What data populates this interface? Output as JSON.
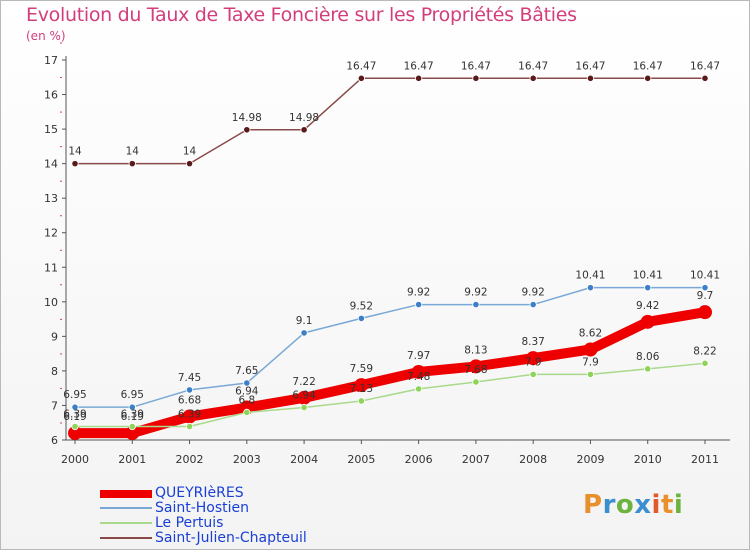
{
  "header": {
    "title": "Evolution du Taux de Taxe Foncière sur les Propriétés Bâties",
    "unit": "(en %)"
  },
  "logo": {
    "text": "Proxiti",
    "letters": [
      "P",
      "r",
      "o",
      "x",
      "i",
      "t",
      "i"
    ]
  },
  "chart_data": {
    "type": "line",
    "title": "Evolution du Taux de Taxe Foncière sur les Propriétés Bâties",
    "ylabel": "(en %)",
    "xlabel": "",
    "x": [
      "2000",
      "2001",
      "2002",
      "2003",
      "2004",
      "2005",
      "2006",
      "2007",
      "2008",
      "2009",
      "2010",
      "2011"
    ],
    "ylim": [
      6,
      17
    ],
    "yticks": [
      "6",
      "7",
      "8",
      "9",
      "10",
      "11",
      "12",
      "13",
      "14",
      "15",
      "16",
      "17"
    ],
    "grid": false,
    "legend_position": "bottom-left",
    "series": [
      {
        "name": "QUEYRIèRES",
        "color": "#ee0000",
        "marker_color": "#ee0000",
        "emphasis": "thick",
        "values": [
          6.2,
          6.2,
          6.68,
          6.94,
          7.22,
          7.59,
          7.97,
          8.13,
          8.37,
          8.62,
          9.42,
          9.7
        ],
        "labels": [
          "6.19",
          "6.19",
          "6.68",
          "6.94",
          "7.22",
          "7.59",
          "7.97",
          "8.13",
          "8.37",
          "8.62",
          "9.42",
          "9.7"
        ]
      },
      {
        "name": "Saint-Hostien",
        "color": "#7aa8d6",
        "marker_color": "#3c7fc6",
        "emphasis": "normal",
        "values": [
          6.95,
          6.95,
          7.45,
          7.65,
          9.1,
          9.52,
          9.92,
          9.92,
          9.92,
          10.41,
          10.41,
          10.41
        ],
        "labels": [
          "6.95",
          "6.95",
          "7.45",
          "7.65",
          "9.1",
          "9.52",
          "9.92",
          "9.92",
          "9.92",
          "10.41",
          "10.41",
          "10.41"
        ]
      },
      {
        "name": "Le Pertuis",
        "color": "#a9d98a",
        "marker_color": "#8fd35a",
        "emphasis": "normal",
        "values": [
          6.39,
          6.39,
          6.39,
          6.8,
          6.94,
          7.13,
          7.48,
          7.68,
          7.9,
          7.9,
          8.06,
          8.22
        ],
        "labels": [
          "6.39",
          "6.39",
          "6.39",
          "6.8",
          "6.94",
          "7.13",
          "7.48",
          "7.68",
          "7.9",
          "7.9",
          "8.06",
          "8.22"
        ]
      },
      {
        "name": "Saint-Julien-Chapteuil",
        "color": "#8a4a4a",
        "marker_color": "#5a1a1a",
        "emphasis": "normal",
        "values": [
          14,
          14,
          14,
          14.98,
          14.98,
          16.47,
          16.47,
          16.47,
          16.47,
          16.47,
          16.47,
          16.47
        ],
        "labels": [
          "14",
          "14",
          "14",
          "14.98",
          "14.98",
          "16.47",
          "16.47",
          "16.47",
          "16.47",
          "16.47",
          "16.47",
          "16.47"
        ]
      }
    ]
  }
}
